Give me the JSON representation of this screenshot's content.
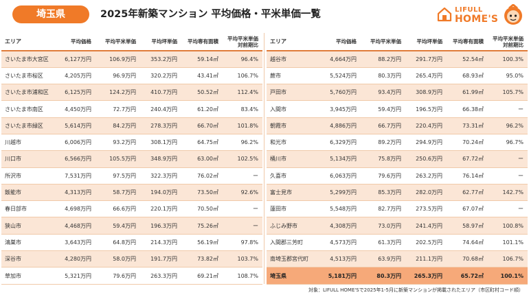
{
  "header": {
    "prefecture": "埼玉県",
    "title": "2025年新築マンション 平均価格・平米単価一覧",
    "logo_line1": "LIFULL",
    "logo_line2": "HOME'S"
  },
  "columns": {
    "area": "エリア",
    "avg_price": "平均価格",
    "avg_sqm_price": "平均平米単価",
    "avg_tsubo_price": "平均坪単価",
    "avg_area": "平均専有面積",
    "yoy_line1": "平均平米単価",
    "yoy_line2": "対前期比"
  },
  "left_rows": [
    {
      "area": "さいたま市大宮区",
      "price": "6,127万円",
      "sqm": "106.9万円",
      "tsubo": "353.2万円",
      "size": "59.14㎡",
      "yoy": "96.4%"
    },
    {
      "area": "さいたま市桜区",
      "price": "4,205万円",
      "sqm": "96.9万円",
      "tsubo": "320.2万円",
      "size": "43.41㎡",
      "yoy": "106.7%"
    },
    {
      "area": "さいたま市浦和区",
      "price": "6,125万円",
      "sqm": "124.2万円",
      "tsubo": "410.7万円",
      "size": "50.52㎡",
      "yoy": "112.4%"
    },
    {
      "area": "さいたま市南区",
      "price": "4,450万円",
      "sqm": "72.7万円",
      "tsubo": "240.4万円",
      "size": "61.20㎡",
      "yoy": "83.4%"
    },
    {
      "area": "さいたま市緑区",
      "price": "5,614万円",
      "sqm": "84.2万円",
      "tsubo": "278.3万円",
      "size": "66.70㎡",
      "yoy": "101.8%"
    },
    {
      "area": "川越市",
      "price": "6,006万円",
      "sqm": "93.2万円",
      "tsubo": "308.1万円",
      "size": "64.75㎡",
      "yoy": "96.2%"
    },
    {
      "area": "川口市",
      "price": "6,566万円",
      "sqm": "105.5万円",
      "tsubo": "348.9万円",
      "size": "63.00㎡",
      "yoy": "102.5%"
    },
    {
      "area": "所沢市",
      "price": "7,531万円",
      "sqm": "97.5万円",
      "tsubo": "322.3万円",
      "size": "76.02㎡",
      "yoy": "ー"
    },
    {
      "area": "飯能市",
      "price": "4,313万円",
      "sqm": "58.7万円",
      "tsubo": "194.0万円",
      "size": "73.50㎡",
      "yoy": "92.6%"
    },
    {
      "area": "春日部市",
      "price": "4,698万円",
      "sqm": "66.6万円",
      "tsubo": "220.1万円",
      "size": "70.50㎡",
      "yoy": "ー"
    },
    {
      "area": "狭山市",
      "price": "4,468万円",
      "sqm": "59.4万円",
      "tsubo": "196.3万円",
      "size": "75.26㎡",
      "yoy": "ー"
    },
    {
      "area": "鴻巣市",
      "price": "3,643万円",
      "sqm": "64.8万円",
      "tsubo": "214.3万円",
      "size": "56.19㎡",
      "yoy": "97.8%"
    },
    {
      "area": "深谷市",
      "price": "4,280万円",
      "sqm": "58.0万円",
      "tsubo": "191.7万円",
      "size": "73.82㎡",
      "yoy": "103.7%"
    },
    {
      "area": "草加市",
      "price": "5,321万円",
      "sqm": "79.6万円",
      "tsubo": "263.3万円",
      "size": "69.21㎡",
      "yoy": "108.7%"
    }
  ],
  "right_rows": [
    {
      "area": "越谷市",
      "price": "4,664万円",
      "sqm": "88.2万円",
      "tsubo": "291.7万円",
      "size": "52.54㎡",
      "yoy": "100.3%"
    },
    {
      "area": "蕨市",
      "price": "5,524万円",
      "sqm": "80.3万円",
      "tsubo": "265.4万円",
      "size": "68.93㎡",
      "yoy": "95.0%"
    },
    {
      "area": "戸田市",
      "price": "5,760万円",
      "sqm": "93.4万円",
      "tsubo": "308.9万円",
      "size": "61.99㎡",
      "yoy": "105.7%"
    },
    {
      "area": "入間市",
      "price": "3,945万円",
      "sqm": "59.4万円",
      "tsubo": "196.5万円",
      "size": "66.38㎡",
      "yoy": "ー"
    },
    {
      "area": "朝霞市",
      "price": "4,886万円",
      "sqm": "66.7万円",
      "tsubo": "220.4万円",
      "size": "73.31㎡",
      "yoy": "96.2%"
    },
    {
      "area": "和光市",
      "price": "6,329万円",
      "sqm": "89.2万円",
      "tsubo": "294.9万円",
      "size": "70.24㎡",
      "yoy": "96.7%"
    },
    {
      "area": "桶川市",
      "price": "5,134万円",
      "sqm": "75.8万円",
      "tsubo": "250.6万円",
      "size": "67.72㎡",
      "yoy": "ー"
    },
    {
      "area": "久喜市",
      "price": "6,063万円",
      "sqm": "79.6万円",
      "tsubo": "263.2万円",
      "size": "76.14㎡",
      "yoy": "ー"
    },
    {
      "area": "富士見市",
      "price": "5,299万円",
      "sqm": "85.3万円",
      "tsubo": "282.0万円",
      "size": "62.77㎡",
      "yoy": "142.7%"
    },
    {
      "area": "蓮田市",
      "price": "5,548万円",
      "sqm": "82.7万円",
      "tsubo": "273.5万円",
      "size": "67.07㎡",
      "yoy": "ー"
    },
    {
      "area": "ふじみ野市",
      "price": "4,308万円",
      "sqm": "73.0万円",
      "tsubo": "241.4万円",
      "size": "58.97㎡",
      "yoy": "100.8%"
    },
    {
      "area": "入間郡三芳町",
      "price": "4,573万円",
      "sqm": "61.3万円",
      "tsubo": "202.5万円",
      "size": "74.64㎡",
      "yoy": "101.1%"
    },
    {
      "area": "南埼玉郡宮代町",
      "price": "4,513万円",
      "sqm": "63.9万円",
      "tsubo": "211.1万円",
      "size": "70.68㎡",
      "yoy": "106.7%"
    }
  ],
  "total_row": {
    "area": "埼玉県",
    "price": "5,181万円",
    "sqm": "80.3万円",
    "tsubo": "265.3万円",
    "size": "65.72㎡",
    "yoy": "100.1%"
  },
  "footnote": "対象：LIFULL HOME'Sで2025年1-5月に新築マンションが掲載されたエリア（市区町村コード順）",
  "colors": {
    "accent": "#f07a28",
    "row_band": "#fbe6d6",
    "total_row": "#f6a979"
  }
}
